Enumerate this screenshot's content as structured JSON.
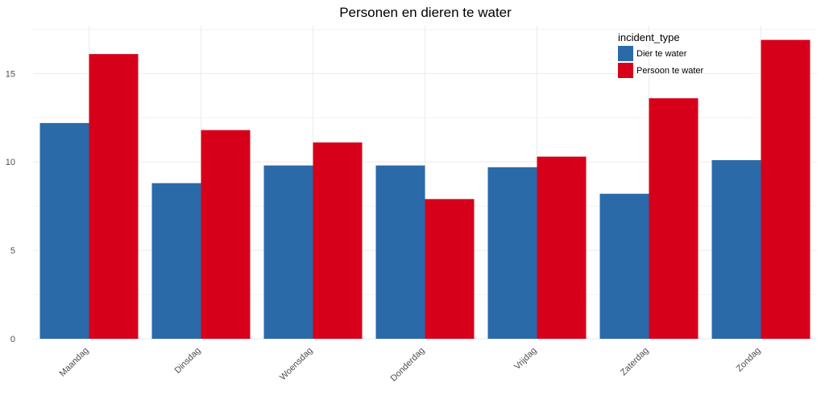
{
  "chart_data": {
    "type": "bar",
    "title": "Personen en dieren te water",
    "xlabel": "",
    "ylabel": "",
    "categories": [
      "Maandag",
      "Dinsdag",
      "Woensdag",
      "Donderdag",
      "Vrijdag",
      "Zaterdag",
      "Zondag"
    ],
    "series": [
      {
        "name": "Dier te water",
        "color": "#2b6aa8",
        "values": [
          12.2,
          8.8,
          9.8,
          9.8,
          9.7,
          8.2,
          10.1
        ]
      },
      {
        "name": "Persoon te water",
        "color": "#d7001a",
        "values": [
          16.1,
          11.8,
          11.1,
          7.9,
          10.3,
          13.6,
          16.9
        ]
      }
    ],
    "ylim": [
      0,
      17.7
    ],
    "yticks": [
      0,
      5,
      10,
      15
    ],
    "grid": true,
    "legend": {
      "title": "incident_type",
      "position": "top-right"
    }
  }
}
